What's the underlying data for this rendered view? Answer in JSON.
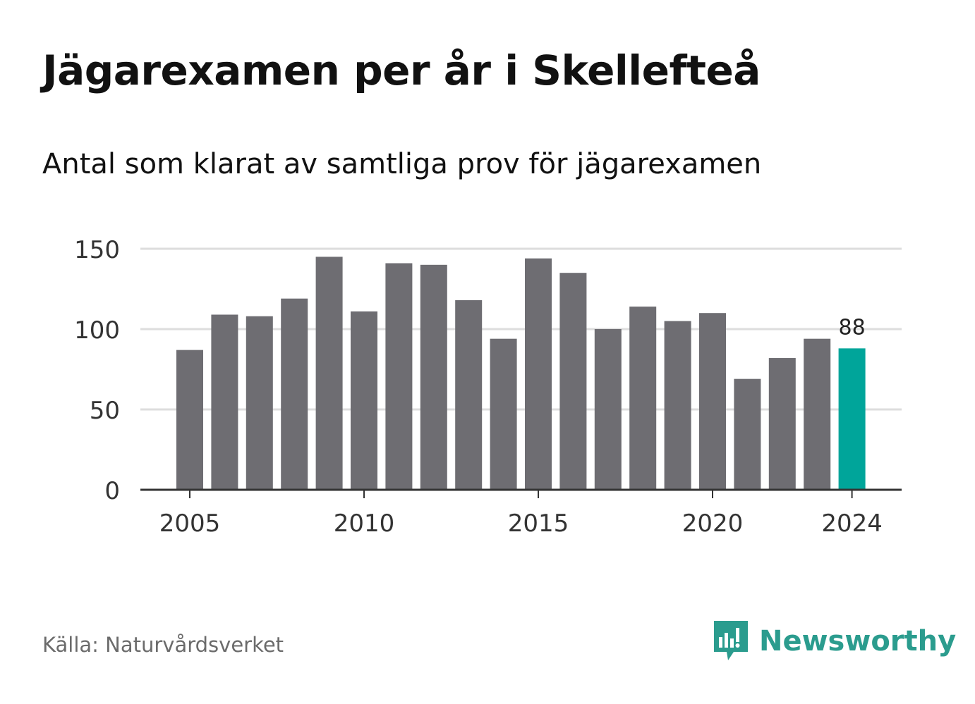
{
  "title": "Jägarexamen per år i Skellefteå",
  "subtitle": "Antal som klarat av samtliga prov för jägarexamen",
  "source": "Källa: Naturvårdsverket",
  "brand": {
    "name": "Newsworthy",
    "logo_icon": "newsworthy-bar-chart-bubble-icon"
  },
  "colors": {
    "bar": "#6e6d72",
    "highlight": "#00a59a",
    "grid": "#dddddd",
    "axis": "#333333",
    "brand": "#2b9c8e"
  },
  "chart_data": {
    "type": "bar",
    "categories": [
      "2005",
      "2006",
      "2007",
      "2008",
      "2009",
      "2010",
      "2011",
      "2012",
      "2013",
      "2014",
      "2015",
      "2016",
      "2017",
      "2018",
      "2019",
      "2020",
      "2021",
      "2022",
      "2023",
      "2024"
    ],
    "values": [
      87,
      109,
      108,
      119,
      145,
      111,
      141,
      140,
      118,
      94,
      144,
      135,
      100,
      114,
      105,
      110,
      69,
      82,
      94,
      88
    ],
    "x_tick_labels": [
      "2005",
      "2010",
      "2015",
      "2020",
      "2024"
    ],
    "y_ticks": [
      0,
      50,
      100,
      150
    ],
    "ylim": [
      0,
      150
    ],
    "highlight": {
      "category": "2024",
      "label": "88"
    },
    "grid": true,
    "xlabel": "",
    "ylabel": ""
  }
}
